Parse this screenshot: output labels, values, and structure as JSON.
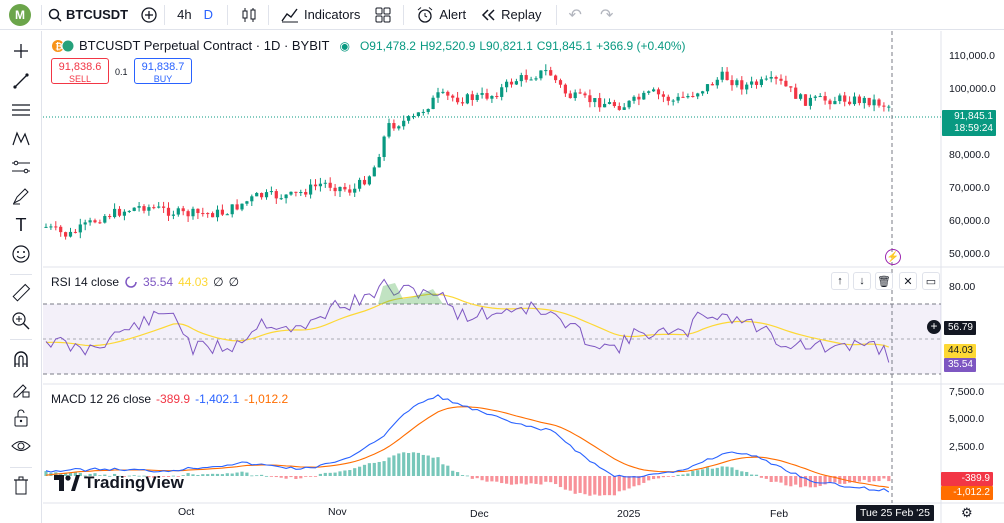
{
  "topbar": {
    "avatar_letter": "M",
    "symbol": "BTCUSDT",
    "interval_1": "4h",
    "interval_2": "D",
    "indicators_label": "Indicators",
    "alert_label": "Alert",
    "replay_label": "Replay"
  },
  "main_legend": {
    "title": "BTCUSDT Perpetual Contract · 1D · BYBIT",
    "o": "O91,478.2",
    "h": "H92,520.9",
    "l": "L90,821.1",
    "c": "C91,845.1",
    "chg": "+366.9 (+0.40%)"
  },
  "trade": {
    "sell_price": "91,838.6",
    "sell_label": "SELL",
    "spread": "0.1",
    "buy_price": "91,838.7",
    "buy_label": "BUY"
  },
  "price_axis": [
    "110,000.0",
    "100,000.0",
    "80,000.0",
    "70,000.0",
    "60,000.0",
    "50,000.0"
  ],
  "price_tag": {
    "price": "91,845.1",
    "countdown": "18:59:24"
  },
  "rsi": {
    "label": "RSI 14 close",
    "value": "35.54",
    "ma": "44.03",
    "extra1": "∅",
    "extra2": "∅",
    "axis": [
      "80.00"
    ],
    "tag_level": "56.79",
    "tag_ma": "44.03",
    "tag_val": "35.54"
  },
  "macd": {
    "label": "MACD 12 26 close",
    "hist": "-389.9",
    "macd": "-1,402.1",
    "signal": "-1,012.2",
    "axis": [
      "7,500.0",
      "5,000.0",
      "2,500.0"
    ],
    "tag_hist": "-389.9",
    "tag_signal": "-1,012.2"
  },
  "time_axis": {
    "oct": "Oct",
    "nov": "Nov",
    "dec": "Dec",
    "y2025": "2025",
    "feb": "Feb",
    "cursor_date": "Tue 25 Feb '25"
  },
  "brand": "TradingView",
  "colors": {
    "up": "#089981",
    "down": "#f23645",
    "rsi": "#7e57c2",
    "rsi_ma": "#fdd835",
    "macd": "#2962ff",
    "signal": "#ff6d00",
    "accent": "#2962ff"
  }
}
